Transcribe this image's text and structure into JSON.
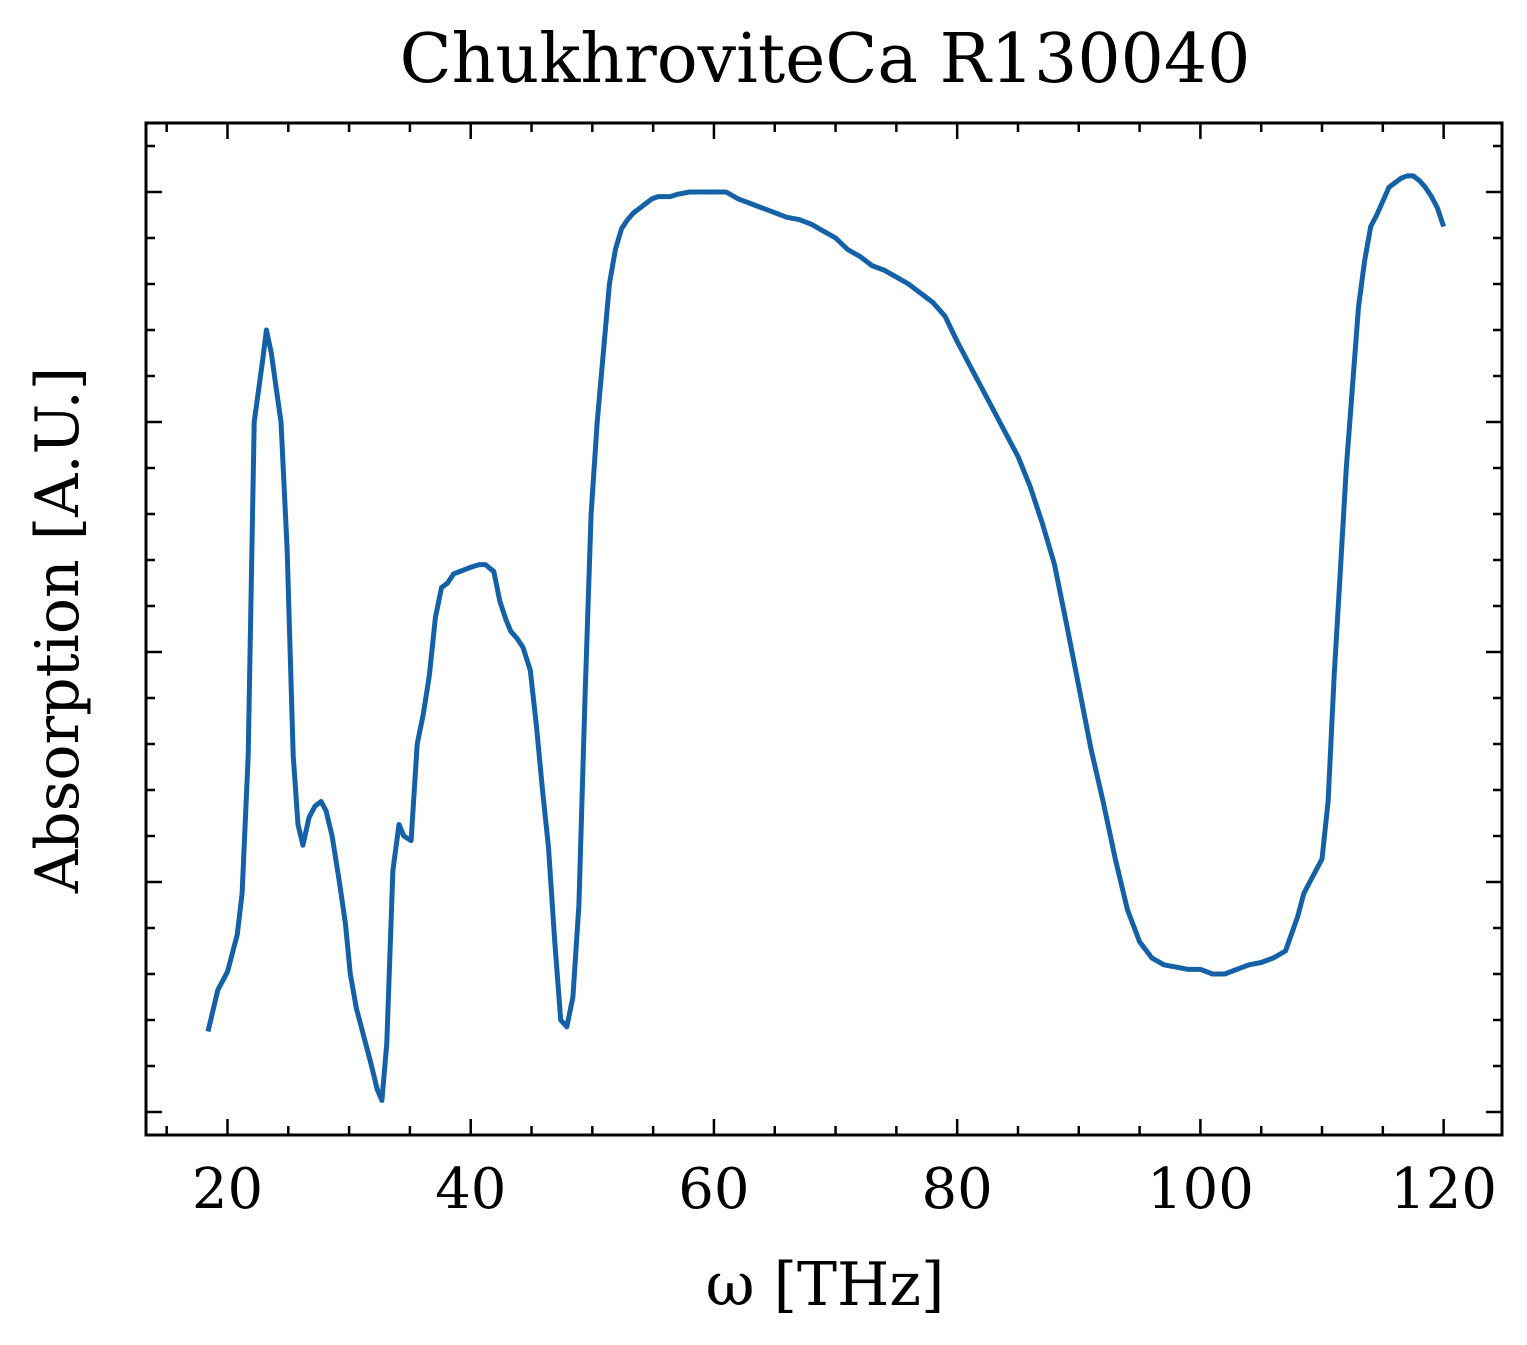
{
  "chart_data": {
    "type": "line",
    "title": "ChukhroviteCa R130040",
    "xlabel": "ω [THz]",
    "ylabel": "Absorption [A.U.]",
    "xlim": [
      13.3,
      124.8
    ],
    "ylim": [
      -0.1,
      4.3
    ],
    "x_ticks": [
      20,
      40,
      60,
      80,
      100,
      120
    ],
    "x_tick_labels": [
      "20",
      "40",
      "60",
      "80",
      "100",
      "120"
    ],
    "y_ticks": [
      0,
      1,
      2,
      3,
      4
    ],
    "y_tick_labels_shown": false,
    "grid": false,
    "legend": "none",
    "colors": {
      "line": "#1461a8",
      "axes": "#000000",
      "background": "#ffffff"
    },
    "series": [
      {
        "x": [
          18.4,
          19.2,
          20.0,
          20.8,
          21.2,
          21.7,
          22.2,
          22.9,
          23.2,
          23.6,
          24.0,
          24.4,
          24.9,
          25.4,
          25.8,
          26.2,
          26.7,
          27.2,
          27.7,
          28.1,
          28.6,
          29.2,
          29.7,
          30.1,
          30.6,
          31.0,
          31.4,
          31.8,
          32.3,
          32.7,
          33.1,
          33.6,
          34.1,
          34.5,
          35.1,
          35.6,
          36.1,
          36.6,
          37.1,
          37.6,
          38.1,
          38.6,
          39.1,
          39.6,
          40.1,
          40.7,
          41.2,
          41.9,
          42.4,
          42.9,
          43.3,
          43.8,
          44.3,
          44.9,
          45.4,
          45.9,
          46.4,
          46.9,
          47.4,
          47.9,
          48.4,
          48.9,
          49.4,
          49.9,
          50.4,
          50.9,
          51.4,
          51.9,
          52.4,
          52.9,
          53.4,
          53.9,
          54.4,
          54.9,
          55.4,
          55.9,
          56.4,
          57.0,
          58.0,
          59.0,
          60.0,
          61.0,
          62.0,
          63.0,
          64.0,
          65.0,
          66.0,
          67.0,
          68.0,
          69.0,
          70.0,
          71.0,
          72.0,
          73.0,
          74.0,
          75.0,
          76.0,
          77.0,
          78.0,
          79.0,
          80.0,
          81.0,
          82.0,
          83.0,
          84.0,
          85.0,
          86.0,
          87.0,
          88.0,
          89.0,
          90.0,
          91.0,
          92.0,
          93.0,
          94.0,
          95.0,
          96.0,
          97.0,
          98.0,
          99.0,
          100.0,
          101.0,
          102.0,
          103.0,
          104.0,
          105.0,
          106.0,
          107.0,
          108.0,
          108.5,
          109.0,
          109.5,
          110.0,
          110.5,
          111.0,
          111.5,
          112.0,
          112.5,
          113.0,
          113.5,
          114.0,
          114.5,
          115.0,
          115.5,
          116.0,
          116.5,
          117.0,
          117.5,
          118.0,
          118.5,
          119.0,
          119.5,
          120.0
        ],
        "y": [
          0.35,
          0.53,
          0.61,
          0.77,
          0.95,
          1.55,
          3.0,
          3.27,
          3.4,
          3.3,
          3.15,
          3.0,
          2.45,
          1.55,
          1.25,
          1.16,
          1.28,
          1.33,
          1.35,
          1.31,
          1.2,
          1.0,
          0.82,
          0.6,
          0.45,
          0.37,
          0.29,
          0.21,
          0.1,
          0.05,
          0.3,
          1.05,
          1.25,
          1.2,
          1.18,
          1.6,
          1.73,
          1.9,
          2.15,
          2.28,
          2.3,
          2.34,
          2.35,
          2.36,
          2.37,
          2.38,
          2.38,
          2.35,
          2.22,
          2.14,
          2.09,
          2.06,
          2.02,
          1.92,
          1.68,
          1.4,
          1.15,
          0.75,
          0.4,
          0.37,
          0.5,
          0.9,
          1.8,
          2.6,
          3.0,
          3.3,
          3.6,
          3.75,
          3.84,
          3.88,
          3.91,
          3.93,
          3.95,
          3.97,
          3.98,
          3.98,
          3.98,
          3.99,
          4.0,
          4.0,
          4.0,
          4.0,
          3.97,
          3.95,
          3.93,
          3.91,
          3.89,
          3.88,
          3.86,
          3.83,
          3.8,
          3.75,
          3.72,
          3.68,
          3.66,
          3.63,
          3.6,
          3.56,
          3.52,
          3.46,
          3.35,
          3.25,
          3.15,
          3.05,
          2.95,
          2.85,
          2.72,
          2.56,
          2.38,
          2.12,
          1.85,
          1.58,
          1.35,
          1.1,
          0.88,
          0.74,
          0.67,
          0.64,
          0.63,
          0.62,
          0.62,
          0.6,
          0.6,
          0.62,
          0.64,
          0.65,
          0.67,
          0.7,
          0.85,
          0.95,
          1.0,
          1.05,
          1.1,
          1.35,
          1.9,
          2.35,
          2.8,
          3.15,
          3.5,
          3.7,
          3.85,
          3.9,
          3.96,
          4.02,
          4.04,
          4.06,
          4.07,
          4.07,
          4.05,
          4.02,
          3.98,
          3.93,
          3.85
        ]
      }
    ]
  }
}
